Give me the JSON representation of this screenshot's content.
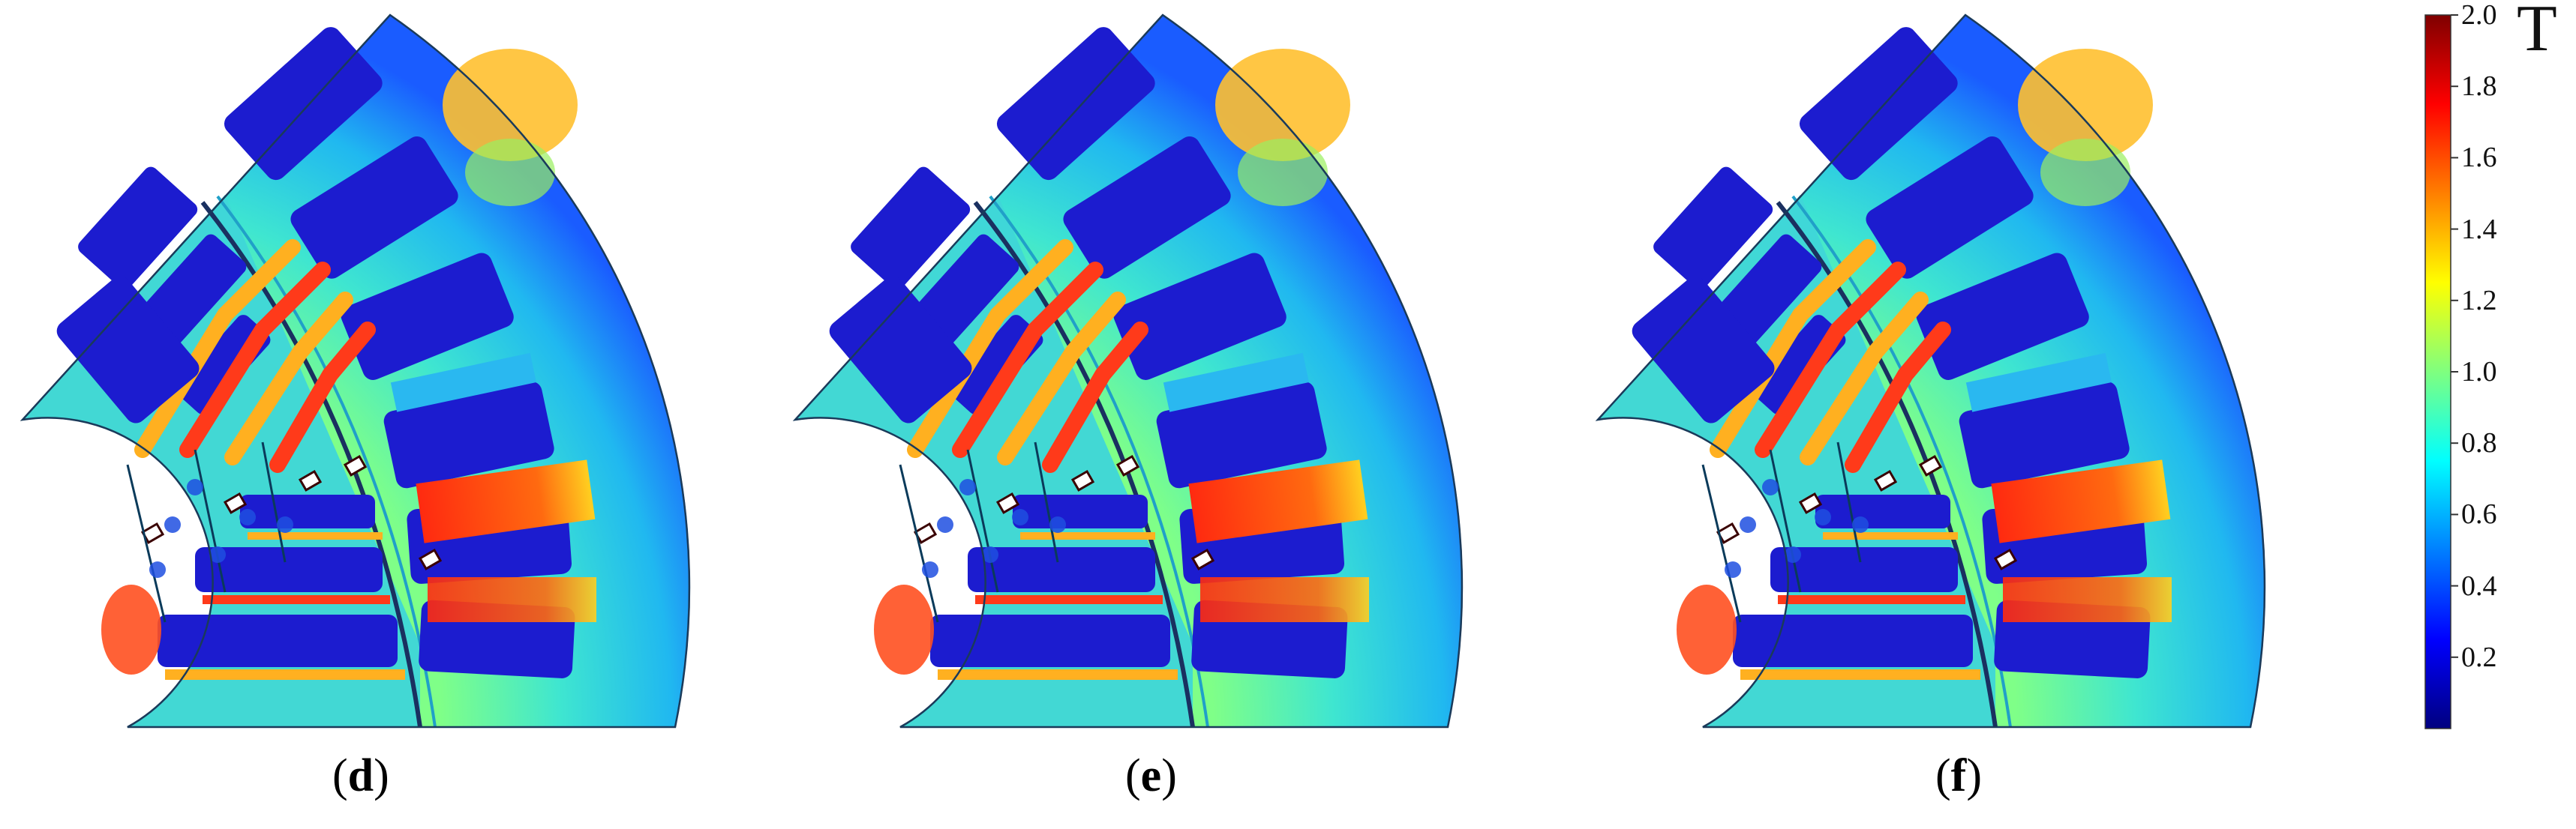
{
  "panels": [
    {
      "label": "d",
      "id": "panel-d"
    },
    {
      "label": "e",
      "id": "panel-e"
    },
    {
      "label": "f",
      "id": "panel-f"
    }
  ],
  "colorbar": {
    "unit": "T",
    "ticks": [
      "2.0",
      "1.8",
      "1.6",
      "1.4",
      "1.2",
      "1.0",
      "0.8",
      "0.6",
      "0.4",
      "0.2"
    ],
    "range": [
      0,
      2.0
    ],
    "colormap": [
      "#00007f",
      "#0000ff",
      "#007fff",
      "#00ffff",
      "#7fff7f",
      "#ffff00",
      "#ff7f00",
      "#ff0000",
      "#7f0000"
    ]
  },
  "colors": {
    "rotor_core": "#3fd6d8",
    "stator_yoke_light": "#38e0c6",
    "slot": "#1c1ccf",
    "high_field": "#ff3a1a",
    "mid_field": "#ffb020"
  }
}
